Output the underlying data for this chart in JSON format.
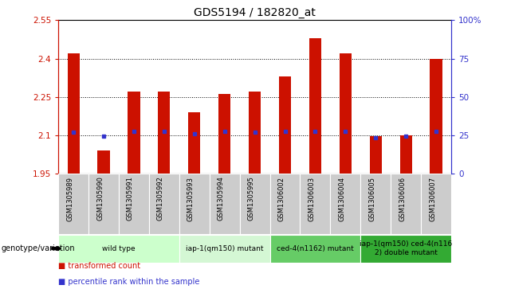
{
  "title": "GDS5194 / 182820_at",
  "samples": [
    "GSM1305989",
    "GSM1305990",
    "GSM1305991",
    "GSM1305992",
    "GSM1305993",
    "GSM1305994",
    "GSM1305995",
    "GSM1306002",
    "GSM1306003",
    "GSM1306004",
    "GSM1306005",
    "GSM1306006",
    "GSM1306007"
  ],
  "transformed_count": [
    2.42,
    2.04,
    2.27,
    2.27,
    2.19,
    2.26,
    2.27,
    2.33,
    2.48,
    2.42,
    2.095,
    2.1,
    2.4
  ],
  "percentile_rank": [
    2.11,
    2.095,
    2.115,
    2.115,
    2.105,
    2.115,
    2.11,
    2.115,
    2.115,
    2.115,
    2.09,
    2.095,
    2.115
  ],
  "base_value": 1.95,
  "ylim": [
    1.95,
    2.55
  ],
  "yticks": [
    1.95,
    2.1,
    2.25,
    2.4,
    2.55
  ],
  "ytick_labels": [
    "1.95",
    "2.1",
    "2.25",
    "2.4",
    "2.55"
  ],
  "right_ylim": [
    0,
    100
  ],
  "right_yticks": [
    0,
    25,
    50,
    75,
    100
  ],
  "right_yticklabels": [
    "0",
    "25",
    "50",
    "75",
    "100%"
  ],
  "gridlines": [
    2.1,
    2.25,
    2.4
  ],
  "bar_color": "#cc1100",
  "dot_color": "#3333cc",
  "groups": [
    {
      "label": "wild type",
      "start": 0,
      "end": 4,
      "color": "#ccffcc"
    },
    {
      "label": "iap-1(qm150) mutant",
      "start": 4,
      "end": 7,
      "color": "#d4f7d4"
    },
    {
      "label": "ced-4(n1162) mutant",
      "start": 7,
      "end": 10,
      "color": "#66cc66"
    },
    {
      "label": "iap-1(qm150) ced-4(n116\n2) double mutant",
      "start": 10,
      "end": 13,
      "color": "#33aa33"
    }
  ],
  "legend_items": [
    {
      "label": "transformed count",
      "color": "#cc1100"
    },
    {
      "label": "percentile rank within the sample",
      "color": "#3333cc"
    }
  ],
  "xlabel_left": "genotype/variation",
  "sample_bg_color": "#cccccc",
  "plot_bg": "#ffffff",
  "axis_color_left": "#cc1100",
  "axis_color_right": "#3333cc",
  "bar_width": 0.4
}
